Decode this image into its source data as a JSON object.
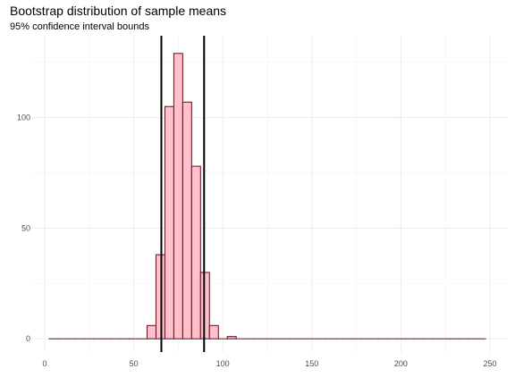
{
  "chart_data": {
    "type": "bar",
    "title": "Bootstrap distribution of sample means",
    "subtitle": "95% confidence interval bounds",
    "xlabel": "",
    "ylabel": "",
    "xlim": [
      -6,
      260
    ],
    "ylim": [
      -6,
      137
    ],
    "x_ticks": [
      0,
      50,
      100,
      150,
      200,
      250
    ],
    "y_ticks": [
      0,
      50,
      100
    ],
    "grid": true,
    "bin_width": 5,
    "bins": [
      {
        "x": 5,
        "count": 0
      },
      {
        "x": 10,
        "count": 0
      },
      {
        "x": 15,
        "count": 0
      },
      {
        "x": 20,
        "count": 0
      },
      {
        "x": 25,
        "count": 0
      },
      {
        "x": 30,
        "count": 0
      },
      {
        "x": 35,
        "count": 0
      },
      {
        "x": 40,
        "count": 0
      },
      {
        "x": 45,
        "count": 0
      },
      {
        "x": 50,
        "count": 0
      },
      {
        "x": 55,
        "count": 0
      },
      {
        "x": 60,
        "count": 6
      },
      {
        "x": 65,
        "count": 38
      },
      {
        "x": 70,
        "count": 105
      },
      {
        "x": 75,
        "count": 129
      },
      {
        "x": 80,
        "count": 107
      },
      {
        "x": 85,
        "count": 78
      },
      {
        "x": 90,
        "count": 30
      },
      {
        "x": 95,
        "count": 6
      },
      {
        "x": 100,
        "count": 0
      },
      {
        "x": 105,
        "count": 1
      },
      {
        "x": 110,
        "count": 0
      },
      {
        "x": 115,
        "count": 0
      },
      {
        "x": 120,
        "count": 0
      },
      {
        "x": 125,
        "count": 0
      },
      {
        "x": 130,
        "count": 0
      },
      {
        "x": 135,
        "count": 0
      },
      {
        "x": 140,
        "count": 0
      },
      {
        "x": 145,
        "count": 0
      },
      {
        "x": 150,
        "count": 0
      },
      {
        "x": 155,
        "count": 0
      },
      {
        "x": 160,
        "count": 0
      },
      {
        "x": 165,
        "count": 0
      },
      {
        "x": 170,
        "count": 0
      },
      {
        "x": 175,
        "count": 0
      },
      {
        "x": 180,
        "count": 0
      },
      {
        "x": 185,
        "count": 0
      },
      {
        "x": 190,
        "count": 0
      },
      {
        "x": 195,
        "count": 0
      },
      {
        "x": 200,
        "count": 0
      },
      {
        "x": 205,
        "count": 0
      },
      {
        "x": 210,
        "count": 0
      },
      {
        "x": 215,
        "count": 0
      },
      {
        "x": 220,
        "count": 0
      },
      {
        "x": 225,
        "count": 0
      },
      {
        "x": 230,
        "count": 0
      },
      {
        "x": 235,
        "count": 0
      },
      {
        "x": 240,
        "count": 0
      },
      {
        "x": 245,
        "count": 0
      }
    ],
    "ci_bounds": [
      65.5,
      89.5
    ],
    "colors": {
      "bar_fill": "#ffc0cb",
      "bar_stroke": "#5c0f1a",
      "ci_line": "#000000",
      "grid_major": "#ebebeb",
      "grid_minor": "#f5f5f5"
    }
  }
}
